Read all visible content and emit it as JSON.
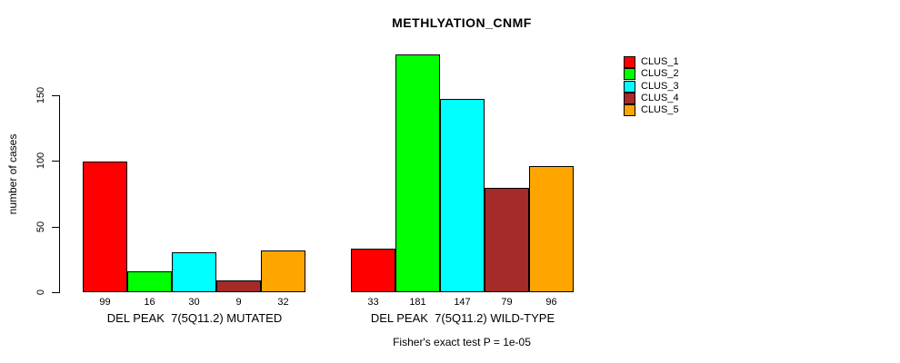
{
  "chart_data": {
    "type": "bar",
    "title": "METHLYATION_CNMF",
    "ylabel": "number of cases",
    "ylim": [
      0,
      181
    ],
    "yticks": [
      0,
      50,
      100,
      150
    ],
    "grid": false,
    "legend_position": "top-right-outside",
    "categories": [
      "DEL PEAK  7(5Q11.2) MUTATED",
      "DEL PEAK  7(5Q11.2) WILD-TYPE"
    ],
    "groups": [
      {
        "label": "DEL PEAK  7(5Q11.2) MUTATED",
        "values": [
          99,
          16,
          30,
          9,
          32
        ]
      },
      {
        "label": "DEL PEAK  7(5Q11.2) WILD-TYPE",
        "values": [
          33,
          181,
          147,
          79,
          96
        ]
      }
    ],
    "series": [
      {
        "name": "CLUS_1",
        "color": "#FF0000"
      },
      {
        "name": "CLUS_2",
        "color": "#00FF00"
      },
      {
        "name": "CLUS_3",
        "color": "#00FFFF"
      },
      {
        "name": "CLUS_4",
        "color": "#A52A2A"
      },
      {
        "name": "CLUS_5",
        "color": "#FFA500"
      }
    ],
    "annotation": "Fisher's exact test P = 1e-05"
  }
}
